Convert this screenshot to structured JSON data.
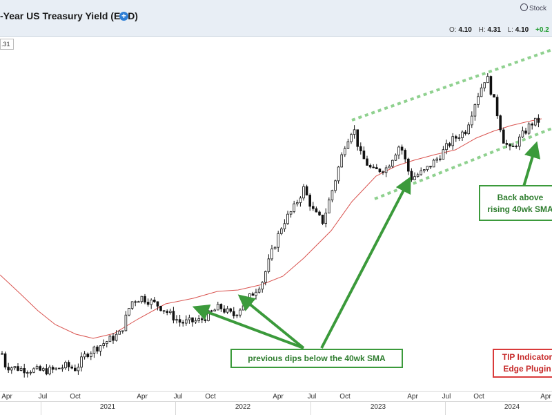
{
  "header": {
    "title": "-Year US Treasury Yield (EOD)",
    "brand": "Stock",
    "ohlc": {
      "o_label": "O:",
      "o": "4.10",
      "h_label": "H:",
      "h": "4.31",
      "l_label": "L:",
      "l": "4.10",
      "chg": "+0.2"
    },
    "price_box": ".31"
  },
  "annotations": {
    "back_above": [
      "Back above",
      "rising 40wk SMA"
    ],
    "dips": "previous dips below the 40wk SMA",
    "tip": [
      "TIP Indicator",
      "Edge Plugin"
    ]
  },
  "colors": {
    "sma": "#d9534f",
    "channel": "#8fd18f",
    "arrow": "#3b9a3b",
    "candle": "#111111"
  },
  "chart_data": {
    "type": "line",
    "x_months": [
      "Apr",
      "Jul",
      "Oct",
      "Apr",
      "Jul",
      "Oct",
      "Apr",
      "Jul",
      "Oct",
      "Apr",
      "Jul",
      "Oct",
      "Apr"
    ],
    "x_years": [
      "2021",
      "2022",
      "2023",
      "2024"
    ],
    "series": [
      {
        "name": "",
        "type": "candlestick",
        "x": [
          "2020-03",
          "2020-06",
          "2020-09",
          "2020-12",
          "2021-02",
          "2021-03",
          "2021-05",
          "2021-07",
          "2021-09",
          "2021-12",
          "2022-02",
          "2022-04",
          "2022-05",
          "2022-06",
          "2022-08",
          "2022-10",
          "2022-11",
          "2022-12",
          "2023-02",
          "2023-03",
          "2023-05",
          "2023-07",
          "2023-09",
          "2023-10",
          "2023-11",
          "2023-12",
          "2024-02",
          "2024-04"
        ],
        "values": [
          0.72,
          0.66,
          0.68,
          0.92,
          1.2,
          1.65,
          1.6,
          1.35,
          1.4,
          1.5,
          1.9,
          2.9,
          2.75,
          3.3,
          2.9,
          4.2,
          3.7,
          3.75,
          3.9,
          3.4,
          3.55,
          3.9,
          4.3,
          4.95,
          4.4,
          3.85,
          4.25,
          4.3
        ]
      },
      {
        "name": "",
        "type": "line",
        "x": [
          "2019-12",
          "2020-06",
          "2020-10",
          "2021-03",
          "2021-07",
          "2022-01",
          "2022-06",
          "2023-01",
          "2023-07",
          "2023-11",
          "2024-02",
          "2024-04"
        ],
        "values": [
          1.75,
          1.0,
          0.7,
          0.95,
          1.3,
          1.5,
          2.3,
          3.3,
          3.75,
          4.1,
          4.18,
          4.25
        ]
      }
    ],
    "ylim": [
      0.5,
      5.4
    ]
  }
}
